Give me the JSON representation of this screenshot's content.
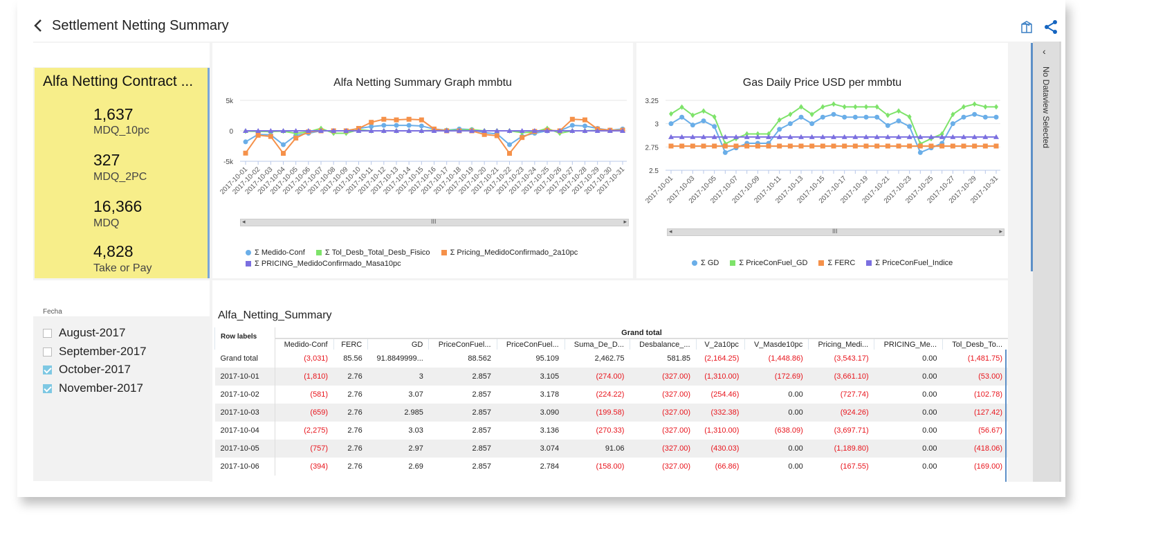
{
  "header": {
    "title": "Settlement Netting Summary",
    "icons": [
      "back-chevron-icon",
      "package-icon",
      "share-icon"
    ]
  },
  "kpi": {
    "title": "Alfa Netting Contract ...",
    "items": [
      {
        "value": "1,637",
        "label": "MDQ_10pc"
      },
      {
        "value": "327",
        "label": "MDQ_2PC"
      },
      {
        "value": "16,366",
        "label": "MDQ"
      },
      {
        "value": "4,828",
        "label": "Take or Pay"
      }
    ],
    "color": "#f7ee8a"
  },
  "filter": {
    "label": "Fecha",
    "options": [
      {
        "label": "August-2017",
        "checked": false
      },
      {
        "label": "September-2017",
        "checked": false
      },
      {
        "label": "October-2017",
        "checked": true
      },
      {
        "label": "November-2017",
        "checked": true
      }
    ]
  },
  "sidebar": {
    "label": "No Dataview Selected"
  },
  "chart_data": [
    {
      "type": "line",
      "title": "Alfa Netting Summary Graph mmbtu",
      "ylim": [
        -5000,
        5000
      ],
      "yticks": [
        "5k",
        "0",
        "-5k"
      ],
      "ytick_values": [
        5000,
        0,
        -5000
      ],
      "grid": true,
      "legend": "bottom",
      "x": [
        "2017-10-01",
        "2017-10-02",
        "2017-10-03",
        "2017-10-04",
        "2017-10-05",
        "2017-10-06",
        "2017-10-07",
        "2017-10-08",
        "2017-10-09",
        "2017-10-10",
        "2017-10-11",
        "2017-10-12",
        "2017-10-13",
        "2017-10-14",
        "2017-10-15",
        "2017-10-16",
        "2017-10-17",
        "2017-10-18",
        "2017-10-19",
        "2017-10-20",
        "2017-10-21",
        "2017-10-22",
        "2017-10-23",
        "2017-10-24",
        "2017-10-25",
        "2017-10-26",
        "2017-10-27",
        "2017-10-28",
        "2017-10-29",
        "2017-10-30",
        "2017-10-31"
      ],
      "x_tick_step": 1,
      "series": [
        {
          "name": "Σ Medido-Conf",
          "color": "#6aaee8",
          "marker": "circle",
          "values": [
            -1810,
            -581,
            -659,
            -2275,
            -757,
            -394,
            0,
            0,
            0,
            400,
            700,
            900,
            900,
            900,
            800,
            300,
            100,
            300,
            200,
            -300,
            -500,
            -2275,
            -900,
            -400,
            0,
            0,
            900,
            800,
            400,
            100,
            300
          ]
        },
        {
          "name": "Σ Tol_Desb_Total_Desb_Fisico",
          "color": "#7ee36a",
          "marker": "diamond",
          "values": [
            -53,
            -103,
            -127,
            -57,
            -418,
            -169,
            400,
            -400,
            -400,
            200,
            0,
            0,
            0,
            0,
            0,
            100,
            100,
            100,
            200,
            0,
            0,
            0,
            -300,
            -200,
            400,
            -400,
            0,
            0,
            100,
            100,
            100
          ]
        },
        {
          "name": "Σ Pricing_MedidoConfirmado_2a10pc",
          "color": "#f5914a",
          "marker": "square",
          "values": [
            -3661,
            -728,
            -924,
            -3698,
            -1190,
            -168,
            0,
            0,
            0,
            400,
            1400,
            1900,
            1800,
            1900,
            1800,
            300,
            0,
            0,
            0,
            -600,
            -800,
            -3700,
            -1100,
            -100,
            100,
            0,
            1900,
            1800,
            300,
            100,
            100
          ]
        },
        {
          "name": "Σ PRICING_MedidoConfirmado_Masa10pc",
          "color": "#7b6fe0",
          "marker": "triangle",
          "values": [
            0,
            0,
            0,
            0,
            0,
            0,
            0,
            0,
            0,
            0,
            0,
            0,
            0,
            0,
            0,
            0,
            0,
            0,
            0,
            0,
            0,
            0,
            0,
            0,
            0,
            0,
            0,
            0,
            0,
            0,
            0
          ]
        }
      ]
    },
    {
      "type": "line",
      "title": "Gas Daily Price USD per mmbtu",
      "ylim": [
        2.5,
        3.25
      ],
      "yticks": [
        "3.25",
        "3",
        "2.75",
        "2.5"
      ],
      "ytick_values": [
        3.25,
        3,
        2.75,
        2.5
      ],
      "grid": true,
      "legend": "bottom",
      "x": [
        "2017-10-01",
        "2017-10-02",
        "2017-10-03",
        "2017-10-04",
        "2017-10-05",
        "2017-10-06",
        "2017-10-07",
        "2017-10-08",
        "2017-10-09",
        "2017-10-10",
        "2017-10-11",
        "2017-10-12",
        "2017-10-13",
        "2017-10-14",
        "2017-10-15",
        "2017-10-16",
        "2017-10-17",
        "2017-10-18",
        "2017-10-19",
        "2017-10-20",
        "2017-10-21",
        "2017-10-22",
        "2017-10-23",
        "2017-10-24",
        "2017-10-25",
        "2017-10-26",
        "2017-10-27",
        "2017-10-28",
        "2017-10-29",
        "2017-10-30",
        "2017-10-31"
      ],
      "x_tick_step": 2,
      "series": [
        {
          "name": "Σ GD",
          "color": "#6aaee8",
          "marker": "circle",
          "values": [
            3,
            3.07,
            2.985,
            3.03,
            2.97,
            2.69,
            2.74,
            2.79,
            2.79,
            2.79,
            2.94,
            3.0,
            3.07,
            3.0,
            3.07,
            3.1,
            3.07,
            3.07,
            3.07,
            3.07,
            2.98,
            3.03,
            2.97,
            2.69,
            2.74,
            2.79,
            3.0,
            3.07,
            3.1,
            3.07,
            3.07
          ]
        },
        {
          "name": "Σ PriceConFuel_GD",
          "color": "#7ee36a",
          "marker": "diamond",
          "values": [
            3.105,
            3.178,
            3.09,
            3.136,
            3.074,
            2.784,
            2.84,
            2.89,
            2.89,
            2.89,
            3.04,
            3.1,
            3.18,
            3.1,
            3.18,
            3.21,
            3.18,
            3.18,
            3.18,
            3.18,
            3.09,
            3.136,
            3.074,
            2.784,
            2.84,
            2.89,
            3.1,
            3.18,
            3.21,
            3.18,
            3.18
          ]
        },
        {
          "name": "Σ FERC",
          "color": "#f5914a",
          "marker": "square",
          "values": [
            2.76,
            2.76,
            2.76,
            2.76,
            2.76,
            2.76,
            2.76,
            2.76,
            2.76,
            2.76,
            2.76,
            2.76,
            2.76,
            2.76,
            2.76,
            2.76,
            2.76,
            2.76,
            2.76,
            2.76,
            2.76,
            2.76,
            2.76,
            2.76,
            2.76,
            2.76,
            2.76,
            2.76,
            2.76,
            2.76,
            2.76
          ]
        },
        {
          "name": "Σ PriceConFuel_Indice",
          "color": "#7b6fe0",
          "marker": "triangle",
          "values": [
            2.857,
            2.857,
            2.857,
            2.857,
            2.857,
            2.857,
            2.857,
            2.857,
            2.857,
            2.857,
            2.857,
            2.857,
            2.857,
            2.857,
            2.857,
            2.857,
            2.857,
            2.857,
            2.857,
            2.857,
            2.857,
            2.857,
            2.857,
            2.857,
            2.857,
            2.857,
            2.857,
            2.857,
            2.857,
            2.857,
            2.857
          ]
        }
      ]
    }
  ],
  "table": {
    "title": "Alfa_Netting_Summary",
    "row_header": "Row labels",
    "group_header": "Grand total",
    "columns": [
      "Medido-Conf",
      "FERC",
      "GD",
      "PriceConFuel...",
      "PriceConFuel...",
      "Suma_De_D...",
      "Desbalance_...",
      "V_2a10pc",
      "V_Masde10pc",
      "Pricing_Medi...",
      "PRICING_Me...",
      "Tol_Desb_To..."
    ],
    "rows": [
      {
        "label": "Grand total",
        "cells": [
          "(3,031)",
          "85.56",
          "91.8849999...",
          "88.562",
          "95.109",
          "2,462.75",
          "581.85",
          "(2,164.25)",
          "(1,448.86)",
          "(3,543.17)",
          "0.00",
          "(1,481.75)"
        ]
      },
      {
        "label": "2017-10-01",
        "cells": [
          "(1,810)",
          "2.76",
          "3",
          "2.857",
          "3.105",
          "(274.00)",
          "(327.00)",
          "(1,310.00)",
          "(172.69)",
          "(3,661.10)",
          "0.00",
          "(53.00)"
        ]
      },
      {
        "label": "2017-10-02",
        "cells": [
          "(581)",
          "2.76",
          "3.07",
          "2.857",
          "3.178",
          "(224.22)",
          "(327.00)",
          "(254.46)",
          "0.00",
          "(727.74)",
          "0.00",
          "(102.78)"
        ]
      },
      {
        "label": "2017-10-03",
        "cells": [
          "(659)",
          "2.76",
          "2.985",
          "2.857",
          "3.090",
          "(199.58)",
          "(327.00)",
          "(332.38)",
          "0.00",
          "(924.26)",
          "0.00",
          "(127.42)"
        ]
      },
      {
        "label": "2017-10-04",
        "cells": [
          "(2,275)",
          "2.76",
          "3.03",
          "2.857",
          "3.136",
          "(270.33)",
          "(327.00)",
          "(1,310.00)",
          "(638.09)",
          "(3,697.71)",
          "0.00",
          "(56.67)"
        ]
      },
      {
        "label": "2017-10-05",
        "cells": [
          "(757)",
          "2.76",
          "2.97",
          "2.857",
          "3.074",
          "91.06",
          "(327.00)",
          "(430.03)",
          "0.00",
          "(1,189.80)",
          "0.00",
          "(418.06)"
        ]
      },
      {
        "label": "2017-10-06",
        "cells": [
          "(394)",
          "2.76",
          "2.69",
          "2.857",
          "2.784",
          "(158.00)",
          "(327.00)",
          "(66.86)",
          "0.00",
          "(167.55)",
          "0.00",
          "(169.00)"
        ]
      }
    ],
    "negative_color": "#e8141c"
  }
}
